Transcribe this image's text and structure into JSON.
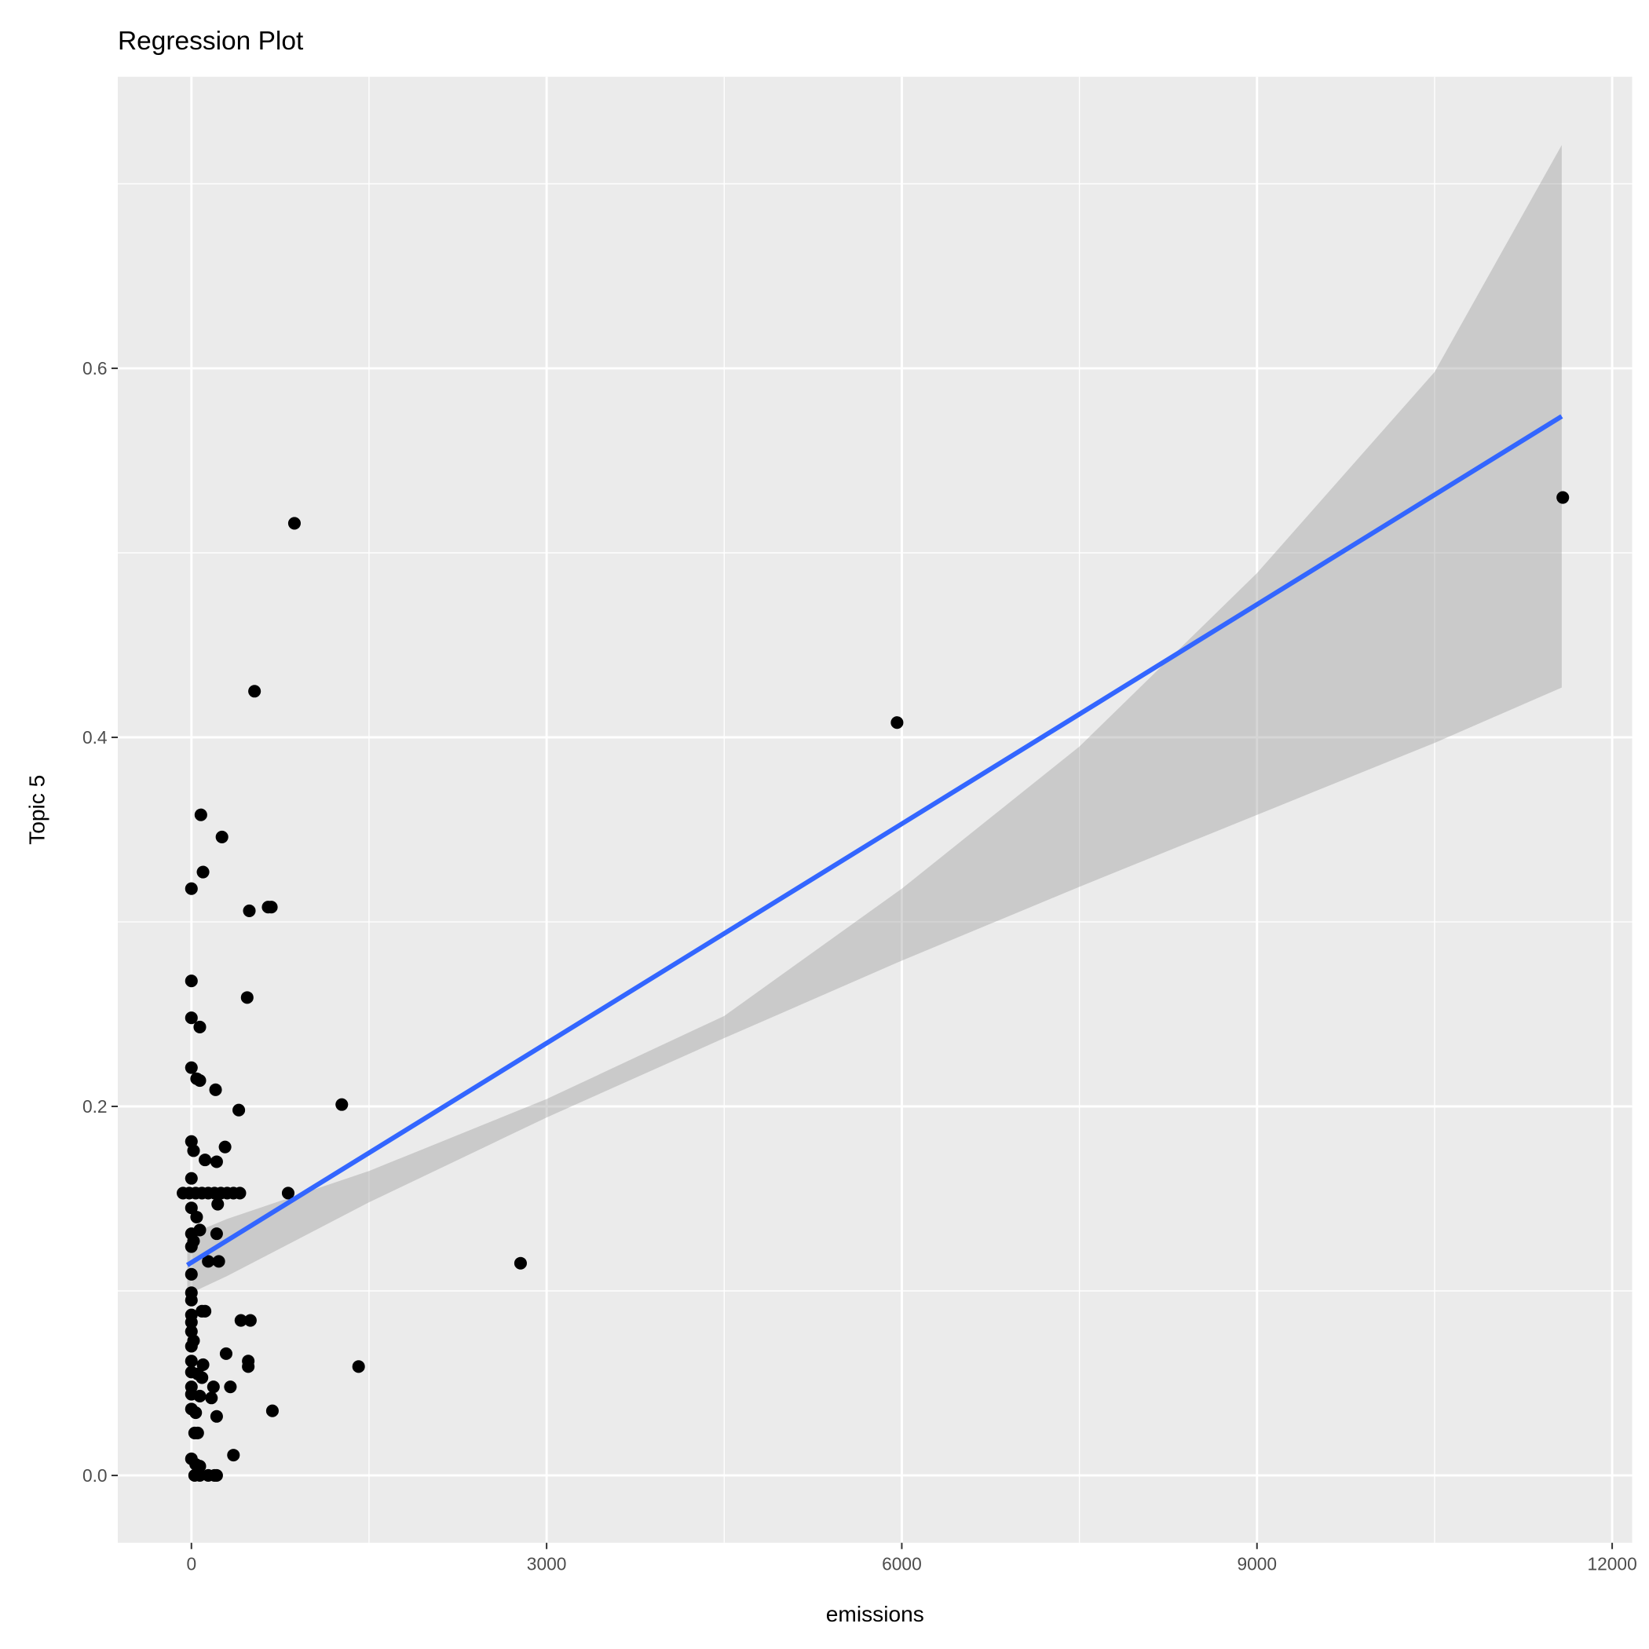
{
  "chart_data": {
    "type": "scatter",
    "title": "Regression Plot",
    "xlabel": "emissions",
    "ylabel": "Topic 5",
    "xlim": [
      -622,
      12169
    ],
    "ylim": [
      -0.0365,
      0.758
    ],
    "x_ticks": [
      0,
      3000,
      6000,
      9000,
      12000
    ],
    "x_tick_labels": [
      "0",
      "3000",
      "6000",
      "9000",
      "12000"
    ],
    "y_ticks": [
      0.0,
      0.2,
      0.4,
      0.6
    ],
    "y_tick_labels": [
      "0.0",
      "0.2",
      "0.4",
      "0.6"
    ],
    "grid": true,
    "colors": {
      "panel": "#ebebeb",
      "grid": "#ffffff",
      "point": "#000000",
      "line": "#3366ff",
      "band": "#999999"
    },
    "points": [
      [
        870,
        0.516
      ],
      [
        533,
        0.425
      ],
      [
        11583,
        0.53
      ],
      [
        5960,
        0.408
      ],
      [
        80,
        0.358
      ],
      [
        258,
        0.346
      ],
      [
        98,
        0.327
      ],
      [
        0,
        0.318
      ],
      [
        489,
        0.306
      ],
      [
        648,
        0.308
      ],
      [
        675,
        0.308
      ],
      [
        0,
        0.268
      ],
      [
        471,
        0.259
      ],
      [
        0,
        0.248
      ],
      [
        71,
        0.243
      ],
      [
        0,
        0.221
      ],
      [
        44,
        0.215
      ],
      [
        71,
        0.214
      ],
      [
        204,
        0.209
      ],
      [
        400,
        0.198
      ],
      [
        1270,
        0.201
      ],
      [
        0,
        0.181
      ],
      [
        18,
        0.176
      ],
      [
        115,
        0.171
      ],
      [
        213,
        0.17
      ],
      [
        284,
        0.178
      ],
      [
        0,
        0.161
      ],
      [
        -71,
        0.153
      ],
      [
        -18,
        0.153
      ],
      [
        36,
        0.153
      ],
      [
        89,
        0.153
      ],
      [
        142,
        0.153
      ],
      [
        195,
        0.153
      ],
      [
        249,
        0.153
      ],
      [
        302,
        0.153
      ],
      [
        355,
        0.153
      ],
      [
        409,
        0.153
      ],
      [
        817,
        0.153
      ],
      [
        0,
        0.145
      ],
      [
        44,
        0.14
      ],
      [
        222,
        0.147
      ],
      [
        0,
        0.131
      ],
      [
        213,
        0.131
      ],
      [
        71,
        0.133
      ],
      [
        2780,
        0.115
      ],
      [
        0,
        0.124
      ],
      [
        18,
        0.127
      ],
      [
        142,
        0.116
      ],
      [
        231,
        0.116
      ],
      [
        0,
        0.109
      ],
      [
        0,
        0.099
      ],
      [
        0,
        0.095
      ],
      [
        89,
        0.089
      ],
      [
        115,
        0.089
      ],
      [
        0,
        0.087
      ],
      [
        0,
        0.083
      ],
      [
        418,
        0.084
      ],
      [
        498,
        0.084
      ],
      [
        0,
        0.078
      ],
      [
        18,
        0.073
      ],
      [
        0,
        0.07
      ],
      [
        293,
        0.066
      ],
      [
        480,
        0.062
      ],
      [
        480,
        0.059
      ],
      [
        1412,
        0.059
      ],
      [
        0,
        0.062
      ],
      [
        98,
        0.06
      ],
      [
        0,
        0.056
      ],
      [
        53,
        0.055
      ],
      [
        89,
        0.053
      ],
      [
        0,
        0.048
      ],
      [
        186,
        0.048
      ],
      [
        329,
        0.048
      ],
      [
        0,
        0.044
      ],
      [
        169,
        0.042
      ],
      [
        71,
        0.043
      ],
      [
        0,
        0.036
      ],
      [
        36,
        0.034
      ],
      [
        213,
        0.032
      ],
      [
        684,
        0.035
      ],
      [
        27,
        0.023
      ],
      [
        53,
        0.023
      ],
      [
        355,
        0.011
      ],
      [
        0,
        0.009
      ],
      [
        36,
        0.006
      ],
      [
        71,
        0.005
      ],
      [
        27,
        0.0
      ],
      [
        71,
        0.0
      ],
      [
        142,
        0.0
      ],
      [
        195,
        0.0
      ],
      [
        213,
        0.0
      ]
    ],
    "regression": {
      "x": [
        -35,
        11574
      ],
      "y": [
        0.114,
        0.574
      ]
    },
    "confidence_band": {
      "x": [
        -35,
        300,
        1500,
        3000,
        4500,
        6000,
        7500,
        9000,
        10500,
        11574
      ],
      "lower": [
        0.098,
        0.108,
        0.148,
        0.194,
        0.237,
        0.279,
        0.319,
        0.358,
        0.397,
        0.427
      ],
      "upper": [
        0.13,
        0.139,
        0.165,
        0.204,
        0.249,
        0.318,
        0.395,
        0.489,
        0.598,
        0.721
      ]
    }
  }
}
